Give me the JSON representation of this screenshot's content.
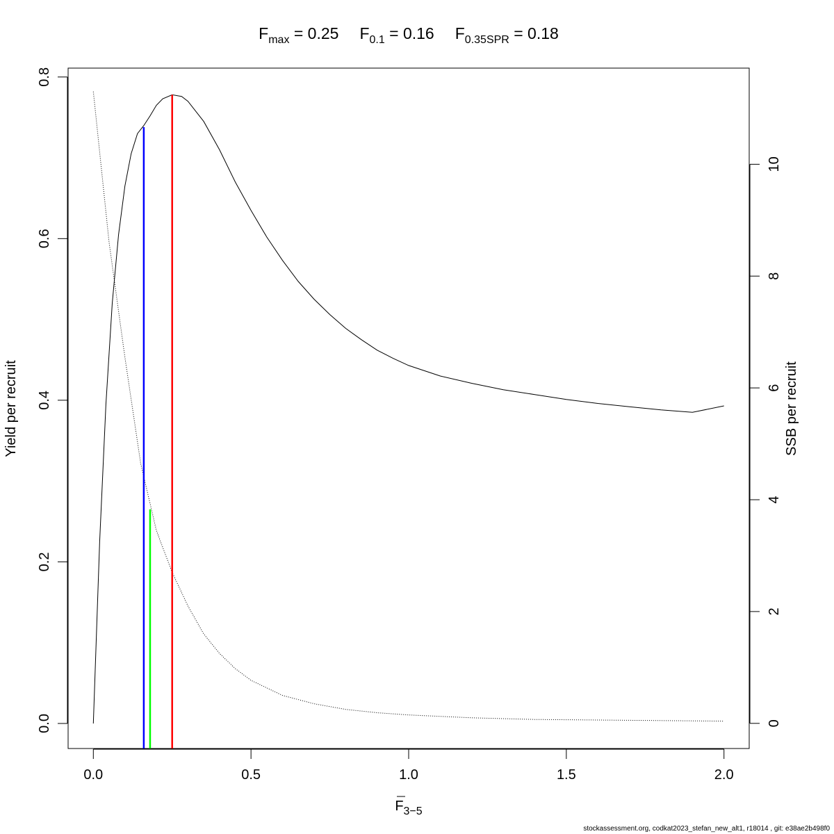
{
  "title": {
    "fmax": {
      "base": "F",
      "sub": "max",
      "eq": " = 0.25"
    },
    "f01": {
      "base": "F",
      "sub": "0.1",
      "eq": " = 0.16"
    },
    "fspr": {
      "base": "F",
      "sub": "0.35SPR",
      "eq": " = 0.18"
    }
  },
  "footer": "stockassessment.org, codkat2023_stefan_new_alt1, r18014 , git: e38ae2b498f0",
  "chart_data": {
    "type": "line",
    "xlabel": {
      "base": "F",
      "sub": "3−5"
    },
    "ylabel": "Yield per recruit",
    "y2label": "SSB per recruit",
    "xlim": [
      -0.08,
      2.08
    ],
    "ylim": [
      -0.031,
      0.811
    ],
    "y2lim": [
      -0.45,
      11.72
    ],
    "x_ticks": [
      0.0,
      0.5,
      1.0,
      1.5,
      2.0
    ],
    "x_tick_labels": [
      "0.0",
      "0.5",
      "1.0",
      "1.5",
      "2.0"
    ],
    "y_ticks": [
      0.0,
      0.2,
      0.4,
      0.6,
      0.8
    ],
    "y_tick_labels": [
      "0.0",
      "0.2",
      "0.4",
      "0.6",
      "0.8"
    ],
    "y2_ticks": [
      0,
      2,
      4,
      6,
      8,
      10
    ],
    "y2_tick_labels": [
      "0",
      "2",
      "4",
      "6",
      "8",
      "10"
    ],
    "grid": false,
    "series": [
      {
        "axis": "left",
        "style": "solid",
        "color": "#000000",
        "x": [
          0.0,
          0.02,
          0.04,
          0.06,
          0.08,
          0.1,
          0.12,
          0.14,
          0.16,
          0.18,
          0.2,
          0.22,
          0.25,
          0.28,
          0.3,
          0.35,
          0.4,
          0.45,
          0.5,
          0.55,
          0.6,
          0.65,
          0.7,
          0.75,
          0.8,
          0.85,
          0.9,
          0.95,
          1.0,
          1.1,
          1.2,
          1.3,
          1.4,
          1.5,
          1.6,
          1.7,
          1.8,
          1.9,
          2.0
        ],
        "y": [
          0.0,
          0.225,
          0.395,
          0.52,
          0.605,
          0.665,
          0.705,
          0.73,
          0.74,
          0.752,
          0.765,
          0.773,
          0.778,
          0.776,
          0.77,
          0.745,
          0.71,
          0.67,
          0.635,
          0.602,
          0.573,
          0.547,
          0.525,
          0.506,
          0.489,
          0.475,
          0.462,
          0.452,
          0.443,
          0.43,
          0.421,
          0.413,
          0.407,
          0.401,
          0.396,
          0.392,
          0.388,
          0.385,
          0.393
        ]
      },
      {
        "axis": "right",
        "style": "dotted",
        "color": "#000000",
        "x": [
          0.0,
          0.05,
          0.1,
          0.15,
          0.2,
          0.25,
          0.3,
          0.35,
          0.4,
          0.45,
          0.5,
          0.6,
          0.7,
          0.8,
          0.9,
          1.0,
          1.2,
          1.4,
          1.6,
          1.8,
          2.0
        ],
        "y": [
          11.3,
          8.6,
          6.55,
          4.65,
          3.45,
          2.7,
          2.1,
          1.6,
          1.25,
          0.98,
          0.77,
          0.5,
          0.35,
          0.25,
          0.19,
          0.15,
          0.1,
          0.07,
          0.06,
          0.05,
          0.04
        ]
      }
    ],
    "reference_lines": [
      {
        "name": "Fmax",
        "x": 0.25,
        "y_top": 0.778,
        "color": "#ff0000"
      },
      {
        "name": "F0.1",
        "x": 0.16,
        "y_top": 0.738,
        "color": "#0000ff"
      },
      {
        "name": "F0.35SPR",
        "x": 0.18,
        "y_top": 0.265,
        "color": "#00ff00"
      }
    ]
  }
}
